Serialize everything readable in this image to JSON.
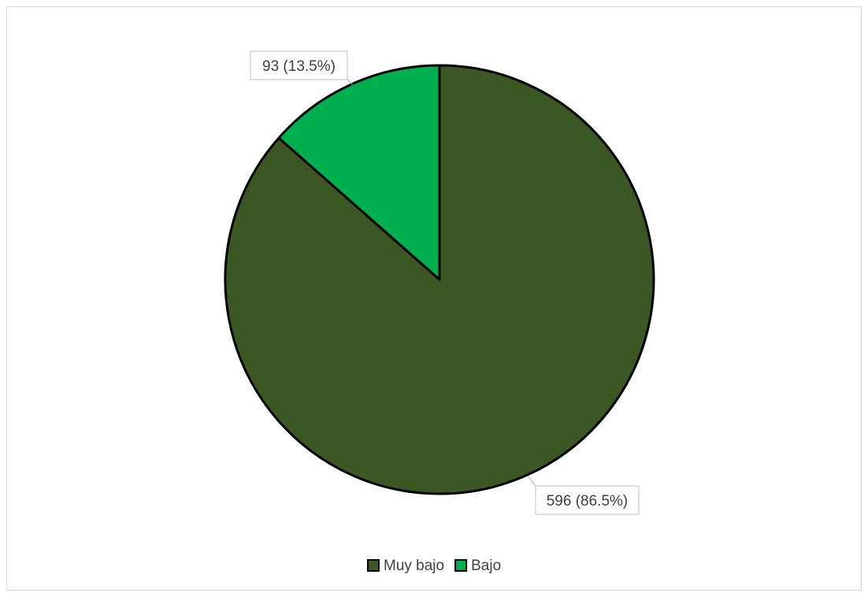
{
  "chart_data": {
    "type": "pie",
    "title": "",
    "slices": [
      {
        "name": "Muy bajo",
        "value": 596,
        "label": "596 (86.5%)",
        "color": "#3b5723"
      },
      {
        "name": "Bajo",
        "value": 93,
        "label": "93 (13.5%)",
        "color": "#00b050"
      }
    ],
    "start_angle_deg": 0,
    "direction": "clockwise",
    "slice_border_color": "#000000",
    "legend": {
      "position": "bottom",
      "entries": [
        "Muy bajo",
        "Bajo"
      ]
    }
  }
}
